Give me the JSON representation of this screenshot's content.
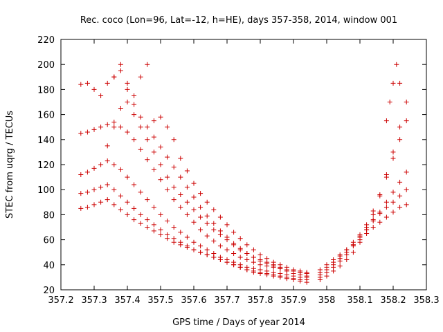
{
  "chart_data": {
    "type": "scatter",
    "title": "Rec. coco (Lon=96, Lat=-12, h=HE), days 357-358, 2014, window 001",
    "xlabel": "GPS time / Days of year 2014",
    "ylabel": "STEC from uqrg / TECUs",
    "xlim": [
      357.2,
      358.3
    ],
    "ylim": [
      20,
      220
    ],
    "xticks": [
      357.2,
      357.3,
      357.4,
      357.5,
      357.6,
      357.7,
      357.8,
      357.9,
      358,
      358.1,
      358.2,
      358.3
    ],
    "xtick_labels": [
      "357.2",
      "357.3",
      "357.4",
      "357.5",
      "357.6",
      "357.7",
      "357.8",
      "357.9",
      "358",
      "358.1",
      "358.2",
      "358.3"
    ],
    "yticks": [
      20,
      40,
      60,
      80,
      100,
      120,
      140,
      160,
      180,
      200,
      220
    ],
    "ytick_labels": [
      "20",
      "40",
      "60",
      "80",
      "100",
      "120",
      "140",
      "160",
      "180",
      "200",
      "220"
    ],
    "grid": false,
    "marker": "+",
    "marker_color": "#cc0000",
    "series": [
      {
        "x": [
          357.26,
          357.28,
          357.3,
          357.32,
          357.34,
          357.36,
          357.38,
          357.4,
          357.42,
          357.44,
          357.46,
          357.48,
          357.5,
          357.52,
          357.54,
          357.56,
          357.58,
          357.6,
          357.62,
          357.64,
          357.66,
          357.68,
          357.7,
          357.72,
          357.74,
          357.76,
          357.78,
          357.8,
          357.82,
          357.84,
          357.86,
          357.88,
          357.9,
          357.92,
          357.94
        ],
        "y": [
          145,
          146,
          148,
          150,
          152,
          154,
          150,
          146,
          140,
          132,
          124,
          116,
          108,
          100,
          92,
          86,
          80,
          74,
          68,
          63,
          59,
          55,
          52,
          49,
          46,
          44,
          42,
          40,
          39,
          38,
          37,
          36,
          35,
          35,
          34
        ]
      },
      {
        "x": [
          357.26,
          357.28,
          357.3,
          357.32,
          357.34,
          357.36,
          357.38,
          357.4,
          357.42,
          357.44,
          357.46,
          357.48,
          357.5,
          357.52,
          357.54,
          357.56,
          357.58,
          357.6,
          357.62,
          357.64,
          357.66,
          357.68,
          357.7,
          357.72,
          357.74,
          357.76,
          357.78,
          357.8,
          357.82,
          357.84,
          357.86,
          357.88,
          357.9,
          357.92,
          357.94
        ],
        "y": [
          112,
          114,
          117,
          120,
          123,
          120,
          116,
          110,
          104,
          98,
          92,
          86,
          80,
          75,
          70,
          66,
          62,
          58,
          55,
          52,
          49,
          46,
          44,
          42,
          40,
          38,
          37,
          36,
          35,
          34,
          33,
          32,
          31,
          30,
          30
        ]
      },
      {
        "x": [
          357.26,
          357.28,
          357.3,
          357.32,
          357.34,
          357.36,
          357.38,
          357.4,
          357.42,
          357.44,
          357.46,
          357.48,
          357.5,
          357.52,
          357.54,
          357.56,
          357.58,
          357.6,
          357.62,
          357.64,
          357.66,
          357.68,
          357.7,
          357.72,
          357.74,
          357.76,
          357.78,
          357.8,
          357.82,
          357.84,
          357.86,
          357.88,
          357.9,
          357.92,
          357.94
        ],
        "y": [
          97,
          98,
          100,
          102,
          104,
          100,
          95,
          90,
          85,
          80,
          76,
          72,
          68,
          64,
          61,
          58,
          55,
          52,
          50,
          48,
          46,
          44,
          42,
          40,
          38,
          36,
          35,
          34,
          33,
          32,
          31,
          30,
          29,
          28,
          28
        ]
      },
      {
        "x": [
          357.26,
          357.28,
          357.3,
          357.32,
          357.34,
          357.36,
          357.38,
          357.4,
          357.42,
          357.44,
          357.46,
          357.48,
          357.5,
          357.52,
          357.54,
          357.56,
          357.58,
          357.6,
          357.62,
          357.64,
          357.66,
          357.68,
          357.7,
          357.72,
          357.74,
          357.76,
          357.78,
          357.8,
          357.82,
          357.84,
          357.86,
          357.88,
          357.9,
          357.92,
          357.94
        ],
        "y": [
          85,
          86,
          88,
          90,
          92,
          88,
          84,
          80,
          76,
          73,
          70,
          67,
          64,
          61,
          58,
          56,
          54,
          52,
          50,
          48,
          46,
          44,
          42,
          40,
          38,
          36,
          34,
          33,
          32,
          31,
          30,
          29,
          28,
          27,
          26
        ]
      },
      {
        "x": [
          357.26,
          357.28,
          357.3,
          357.32,
          357.34,
          357.36,
          357.38,
          357.4,
          357.42,
          357.44,
          357.46,
          357.48,
          357.5,
          357.52,
          357.54,
          357.56,
          357.58,
          357.6,
          357.62,
          357.64,
          357.66,
          357.68,
          357.7,
          357.72,
          357.74,
          357.76,
          357.78,
          357.8,
          357.82,
          357.84,
          357.86,
          357.88,
          357.9,
          357.92,
          357.94
        ],
        "y": [
          184,
          185,
          180,
          175,
          185,
          190,
          195,
          180,
          168,
          158,
          150,
          142,
          134,
          126,
          118,
          110,
          102,
          94,
          86,
          79,
          73,
          67,
          62,
          57,
          53,
          49,
          46,
          44,
          42,
          40,
          38,
          36,
          35,
          34,
          33
        ]
      },
      {
        "x": [
          357.34,
          357.36,
          357.38,
          357.4,
          357.42,
          357.44,
          357.46,
          357.48,
          357.5,
          357.52,
          357.54,
          357.56,
          357.58,
          357.6,
          357.62,
          357.64,
          357.66,
          357.68,
          357.7,
          357.72,
          357.74,
          357.76,
          357.78,
          357.8,
          357.82,
          357.84,
          357.86,
          357.88,
          357.9,
          357.92,
          357.94
        ],
        "y": [
          135,
          150,
          165,
          170,
          160,
          150,
          140,
          130,
          120,
          110,
          102,
          96,
          90,
          84,
          78,
          73,
          68,
          64,
          60,
          56,
          52,
          49,
          46,
          43,
          41,
          39,
          37,
          35,
          33,
          32,
          31
        ]
      },
      {
        "x": [
          357.36,
          357.38,
          357.4,
          357.42,
          357.44,
          357.46,
          357.48,
          357.5,
          357.52,
          357.54,
          357.56,
          357.58,
          357.6,
          357.62,
          357.64,
          357.66,
          357.68,
          357.7,
          357.72,
          357.74,
          357.76,
          357.78,
          357.8,
          357.82,
          357.84,
          357.86,
          357.88,
          357.9,
          357.92,
          357.94
        ],
        "y": [
          190,
          200,
          185,
          175,
          190,
          200,
          155,
          158,
          150,
          140,
          125,
          115,
          105,
          97,
          90,
          84,
          78,
          72,
          66,
          61,
          56,
          52,
          48,
          45,
          42,
          40,
          38,
          36,
          34,
          33
        ]
      },
      {
        "x": [
          357.98,
          358.0,
          358.02,
          358.04,
          358.06,
          358.08,
          358.1,
          358.12,
          358.14,
          358.16,
          358.18,
          358.2,
          358.22,
          358.24
        ],
        "y": [
          28,
          31,
          35,
          39,
          44,
          50,
          58,
          68,
          80,
          95,
          112,
          130,
          150,
          170
        ]
      },
      {
        "x": [
          357.98,
          358.0,
          358.02,
          358.04,
          358.06,
          358.08,
          358.1,
          358.12,
          358.14,
          358.16,
          358.18,
          358.2,
          358.22,
          358.24
        ],
        "y": [
          30,
          34,
          38,
          43,
          48,
          55,
          63,
          72,
          83,
          96,
          110,
          125,
          140,
          155
        ]
      },
      {
        "x": [
          357.98,
          358.0,
          358.02,
          358.04,
          358.06,
          358.08,
          358.1,
          358.12,
          358.14,
          358.16,
          358.18,
          358.2,
          358.22,
          358.24
        ],
        "y": [
          32,
          36,
          40,
          45,
          50,
          56,
          62,
          68,
          75,
          82,
          90,
          98,
          106,
          114
        ]
      },
      {
        "x": [
          357.98,
          358.0,
          358.02,
          358.04,
          358.06,
          358.08,
          358.1,
          358.12,
          358.14,
          358.16,
          358.18,
          358.2,
          358.22,
          358.24
        ],
        "y": [
          34,
          38,
          42,
          47,
          52,
          58,
          64,
          70,
          76,
          81,
          86,
          90,
          95,
          100
        ]
      },
      {
        "x": [
          357.98,
          358.0,
          358.02,
          358.04,
          358.06,
          358.08,
          358.1,
          358.12,
          358.14,
          358.16,
          358.18,
          358.2,
          358.22,
          358.24
        ],
        "y": [
          36,
          40,
          44,
          48,
          52,
          56,
          60,
          65,
          70,
          74,
          78,
          82,
          86,
          88
        ]
      },
      {
        "x": [
          358.18,
          358.19,
          358.2,
          358.21,
          358.22
        ],
        "y": [
          155,
          170,
          185,
          200,
          185
        ]
      }
    ]
  }
}
